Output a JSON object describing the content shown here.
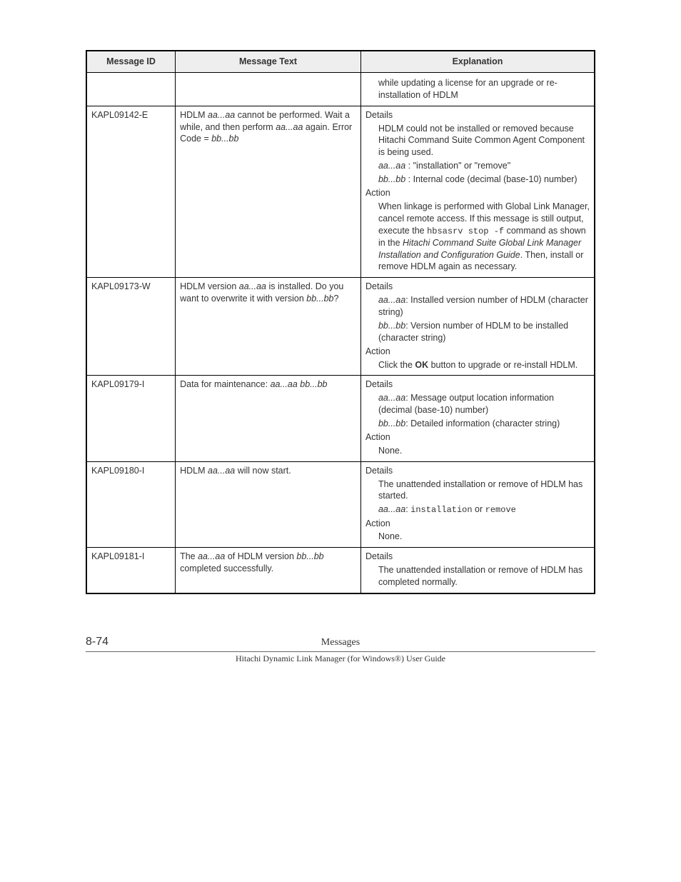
{
  "headers": {
    "c1": "Message ID",
    "c2": "Message Text",
    "c3": "Explanation"
  },
  "labels": {
    "details": "Details",
    "action": "Action",
    "none": "None."
  },
  "row0": {
    "t1": "while updating a license for an upgrade or re-installation of HDLM"
  },
  "row1": {
    "id": "KAPL09142-E",
    "msg_pre": "HDLM ",
    "msg_var1": "aa...aa",
    "msg_mid1": " cannot be performed. Wait a while, and then perform ",
    "msg_var2": "aa...aa",
    "msg_mid2": " again. Error Code = ",
    "msg_var3": "bb...bb",
    "d1": "HDLM could not be installed or removed because Hitachi Command Suite Common Agent Component is being used.",
    "d2v": "aa...aa",
    "d2t": " : \"installation\" or \"remove\"",
    "d3v": "bb...bb",
    "d3t": " : Internal code (decimal (base-10) number)",
    "a1a": "When linkage is performed with Global Link Manager, cancel remote access. If this message is still output, execute the ",
    "a1code1": "hbsasrv stop -f",
    "a1b": " command as shown in the ",
    "a1ital": "Hitachi Command Suite Global Link Manager Installation and Configuration Guide",
    "a1c": ". Then, install or remove HDLM again as necessary."
  },
  "row2": {
    "id": "KAPL09173-W",
    "m1": "HDLM version ",
    "mv1": "aa...aa",
    "m2": " is installed. Do you want to overwrite it with version ",
    "mv2": "bb...bb",
    "m3": "?",
    "d1v": "aa...aa",
    "d1t": ": Installed version number of HDLM (character string)",
    "d2v": "bb...bb",
    "d2t": ": Version number of HDLM to be installed (character string)",
    "a1a": "Click the ",
    "a1b": "OK",
    "a1c": " button to upgrade or re-install HDLM."
  },
  "row3": {
    "id": "KAPL09179-I",
    "m1": "Data for maintenance: ",
    "mv1": "aa...aa",
    "m2": " ",
    "mv2": "bb...bb",
    "d1v": "aa...aa",
    "d1t": ": Message output location information (decimal (base-10) number)",
    "d2v": "bb...bb",
    "d2t": ": Detailed information (character string)"
  },
  "row4": {
    "id": "KAPL09180-I",
    "m1": "HDLM ",
    "mv1": "aa...aa",
    "m2": " will now start.",
    "d1": "The unattended installation or remove of HDLM has started.",
    "d2v": "aa...aa",
    "d2a": ": ",
    "d2c1": "installation",
    "d2b": " or ",
    "d2c2": "remove"
  },
  "row5": {
    "id": "KAPL09181-I",
    "m1": "The ",
    "mv1": "aa...aa",
    "m2": " of HDLM version ",
    "mv2": "bb...bb",
    "m3": " completed successfully.",
    "d1": "The unattended installation or remove of HDLM has completed normally."
  },
  "footer": {
    "pagenum": "8-74",
    "title": "Messages",
    "subtitle": "Hitachi Dynamic Link Manager (for Windows®) User Guide"
  }
}
